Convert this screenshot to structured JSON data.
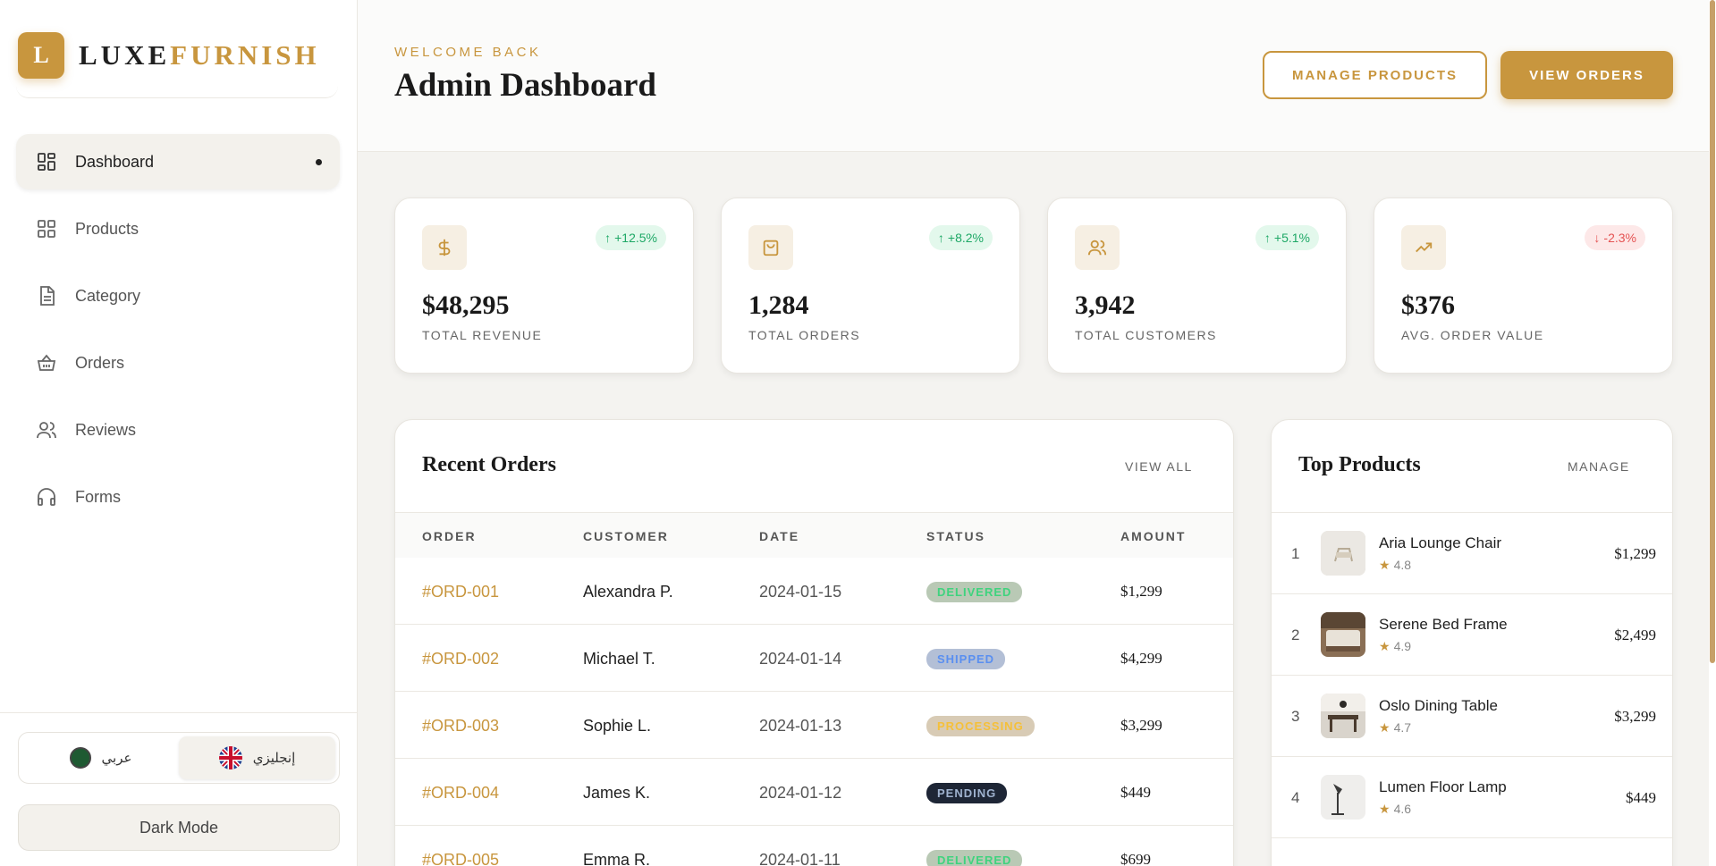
{
  "brand": {
    "logo_letter": "L",
    "name_part1": "LUXE",
    "name_part2": "FURNISH"
  },
  "sidebar": {
    "items": [
      {
        "label": "Dashboard",
        "icon": "dashboard-grid-icon",
        "active": true
      },
      {
        "label": "Products",
        "icon": "grid-icon",
        "active": false
      },
      {
        "label": "Category",
        "icon": "document-icon",
        "active": false
      },
      {
        "label": "Orders",
        "icon": "basket-icon",
        "active": false
      },
      {
        "label": "Reviews",
        "icon": "users-icon",
        "active": false
      },
      {
        "label": "Forms",
        "icon": "headphones-icon",
        "active": false
      }
    ],
    "lang_arabic": "عربي",
    "lang_english": "إنجليزي",
    "dark_mode": "Dark Mode"
  },
  "header": {
    "welcome": "WELCOME BACK",
    "title": "Admin Dashboard",
    "manage_products": "MANAGE PRODUCTS",
    "view_orders": "VIEW ORDERS"
  },
  "stats": [
    {
      "value": "$48,295",
      "label": "TOTAL REVENUE",
      "change": "+12.5%",
      "trend": "up",
      "icon": "dollar-icon"
    },
    {
      "value": "1,284",
      "label": "TOTAL ORDERS",
      "change": "+8.2%",
      "trend": "up",
      "icon": "shopping-bag-icon"
    },
    {
      "value": "3,942",
      "label": "TOTAL CUSTOMERS",
      "change": "+5.1%",
      "trend": "up",
      "icon": "users-icon"
    },
    {
      "value": "$376",
      "label": "AVG. ORDER VALUE",
      "change": "-2.3%",
      "trend": "down",
      "icon": "trending-up-icon"
    }
  ],
  "recent_orders": {
    "title": "Recent Orders",
    "view_all": "VIEW ALL",
    "columns": [
      "ORDER",
      "CUSTOMER",
      "DATE",
      "STATUS",
      "AMOUNT"
    ],
    "rows": [
      {
        "order": "#ORD-001",
        "customer": "Alexandra P.",
        "date": "2024-01-15",
        "status": "DELIVERED",
        "amount": "$1,299"
      },
      {
        "order": "#ORD-002",
        "customer": "Michael T.",
        "date": "2024-01-14",
        "status": "SHIPPED",
        "amount": "$4,299"
      },
      {
        "order": "#ORD-003",
        "customer": "Sophie L.",
        "date": "2024-01-13",
        "status": "PROCESSING",
        "amount": "$3,299"
      },
      {
        "order": "#ORD-004",
        "customer": "James K.",
        "date": "2024-01-12",
        "status": "PENDING",
        "amount": "$449"
      },
      {
        "order": "#ORD-005",
        "customer": "Emma R.",
        "date": "2024-01-11",
        "status": "DELIVERED",
        "amount": "$699"
      }
    ]
  },
  "top_products": {
    "title": "Top Products",
    "manage": "MANAGE",
    "items": [
      {
        "rank": "1",
        "name": "Aria Lounge Chair",
        "rating": "4.8",
        "price": "$1,299"
      },
      {
        "rank": "2",
        "name": "Serene Bed Frame",
        "rating": "4.9",
        "price": "$2,499"
      },
      {
        "rank": "3",
        "name": "Oslo Dining Table",
        "rating": "4.7",
        "price": "$3,299"
      },
      {
        "rank": "4",
        "name": "Lumen Floor Lamp",
        "rating": "4.6",
        "price": "$449"
      }
    ]
  },
  "colors": {
    "accent": "#c8963e",
    "up": "#1ea866",
    "down": "#e55353"
  }
}
